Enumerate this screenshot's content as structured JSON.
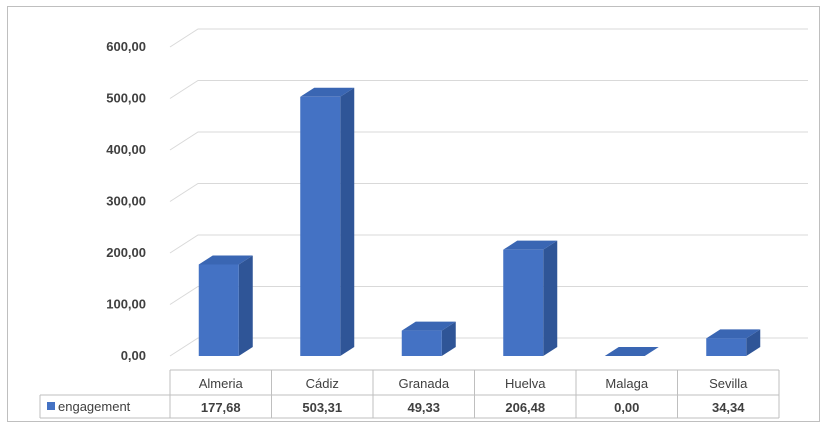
{
  "chart_data": {
    "type": "bar",
    "style": "3d-column-with-data-table",
    "categories": [
      "Almeria",
      "Cádiz",
      "Granada",
      "Huelva",
      "Malaga",
      "Sevilla"
    ],
    "series": [
      {
        "name": "engagement",
        "values": [
          177.68,
          503.31,
          49.33,
          206.48,
          0.0,
          34.34
        ],
        "labels": [
          "177,68",
          "503,31",
          "49,33",
          "206,48",
          "0,00",
          "34,34"
        ],
        "color": "#4472c4"
      }
    ],
    "ylim": [
      0,
      600
    ],
    "yticks": [
      0,
      100,
      200,
      300,
      400,
      500,
      600
    ],
    "ytick_labels": [
      "0,00",
      "100,00",
      "200,00",
      "300,00",
      "400,00",
      "500,00",
      "600,00"
    ],
    "grid": true,
    "legend": "data-table-left",
    "colors": {
      "bar_front": "#4472c4",
      "bar_side": "#2f5597",
      "bar_top": "#3a66b3",
      "gridline": "#d9d9d9",
      "table_border": "#bfbfbf"
    }
  }
}
